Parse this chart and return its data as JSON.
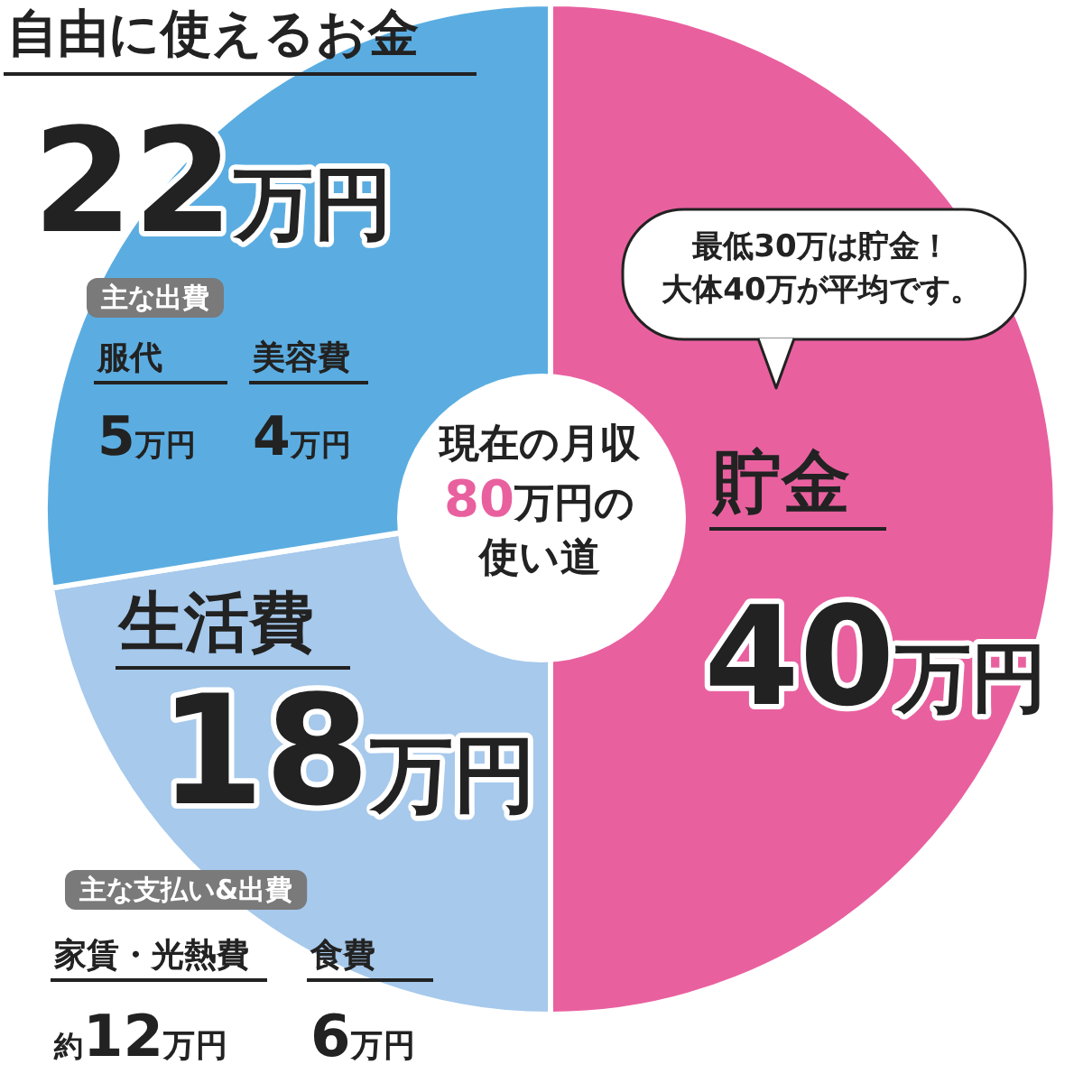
{
  "chart_data": {
    "type": "pie",
    "title": "現在の月収80万円の使い道",
    "categories": [
      "貯金",
      "生活費",
      "自由に使えるお金"
    ],
    "values": [
      40,
      18,
      22
    ],
    "colors": [
      "#e9609f",
      "#a6c9ec",
      "#5bade1"
    ],
    "value_labels": [
      "40万円",
      "18万円",
      "22万円"
    ],
    "annotations": [
      "最低30万は貯金！",
      "大体40万が平均です。",
      "主な出費",
      "服代",
      "5万円",
      "美容費",
      "4万円",
      "主な支払い&出費",
      "家賃・光熱費",
      "約12万円",
      "食費",
      "6万円"
    ]
  }
}
